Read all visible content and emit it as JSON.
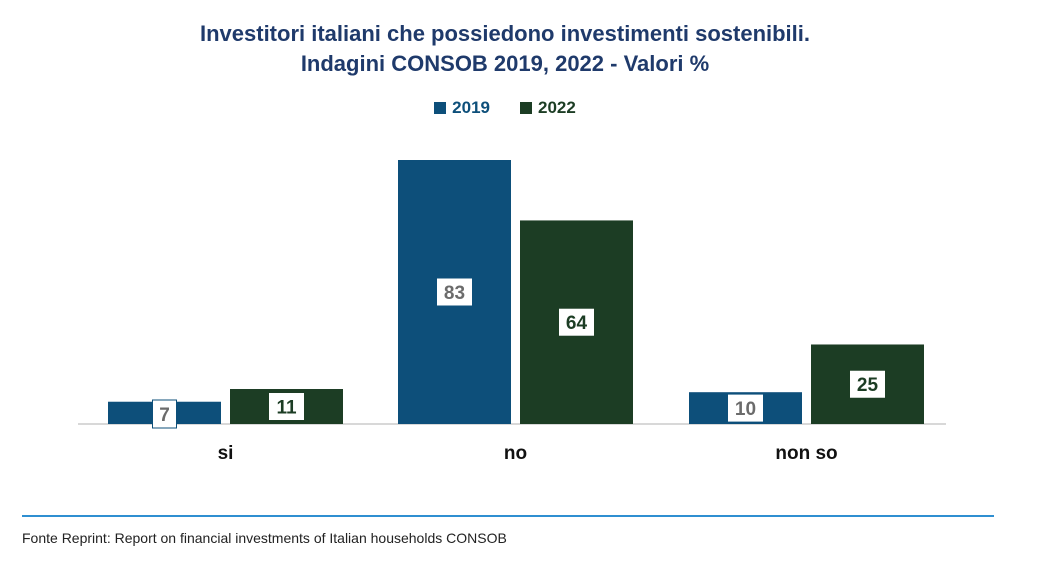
{
  "title_line1": "Investitori italiani che possiedono investimenti sostenibili.",
  "title_line2": "Indagini CONSOB 2019, 2022 - Valori %",
  "source": "Fonte Reprint: Report on financial investments of Italian households CONSOB",
  "colors": {
    "title": "#1f3a6b",
    "series_2019": "#0d4f7a",
    "series_2022": "#1c3d24",
    "label_2019_text": "#6b6b6b",
    "label_2022_text": "#1c3d24",
    "axis": "#cccccc",
    "source_rule": "#2f8fd1"
  },
  "chart_data": {
    "type": "bar",
    "categories": [
      "si",
      "no",
      "non so"
    ],
    "series": [
      {
        "name": "2019",
        "values": [
          7,
          83,
          10
        ]
      },
      {
        "name": "2022",
        "values": [
          11,
          64,
          25
        ]
      }
    ],
    "title": "Investitori italiani che possiedono investimenti sostenibili. Indagini CONSOB 2019, 2022 - Valori %",
    "xlabel": "",
    "ylabel": "",
    "ylim": [
      0,
      83
    ],
    "grid": false,
    "legend": "top-center"
  }
}
